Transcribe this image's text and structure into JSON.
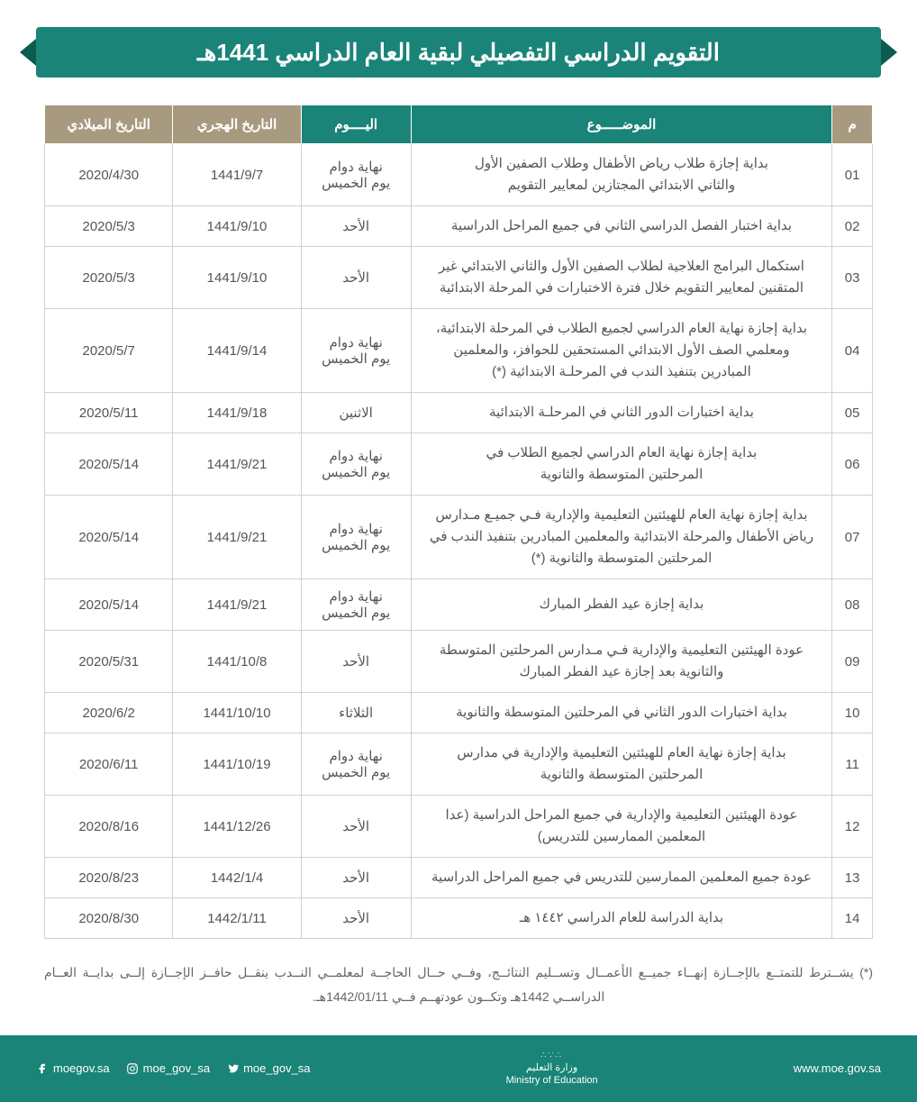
{
  "title": "التقويم الدراسي التفصيلي لبقية العام الدراسي  1441هـ",
  "colors": {
    "header_green": "#1a8478",
    "header_tan": "#a89a7f",
    "border": "#d0d0d0",
    "text": "#555555"
  },
  "columns": {
    "index": "م",
    "subject": "الموضـــــوع",
    "day": "اليــــوم",
    "hijri": "التاريخ الهجري",
    "gregorian": "التاريخ الميلادي"
  },
  "column_widths": {
    "index": 44,
    "subject": 460,
    "day": 120,
    "hijri": 140,
    "gregorian": 140
  },
  "rows": [
    {
      "n": "01",
      "subject": "بداية إجازة طلاب رياض الأطفال وطلاب الصفين الأول\nوالثاني الابتدائي المجتازين لمعايير التقويم",
      "day": "نهاية دوام\nيوم الخميس",
      "hijri": "1441/9/7",
      "greg": "2020/4/30"
    },
    {
      "n": "02",
      "subject": "بداية اختبار الفصل الدراسي الثاني في جميع المراحل الدراسية",
      "day": "الأحد",
      "hijri": "1441/9/10",
      "greg": "2020/5/3"
    },
    {
      "n": "03",
      "subject": "استكمال البرامج العلاجية لطلاب الصفين الأول والثاني الابتدائي غير\nالمتقنين لمعايير التقويم خلال فترة الاختبارات في المرحلة الابتدائية",
      "day": "الأحد",
      "hijri": "1441/9/10",
      "greg": "2020/5/3"
    },
    {
      "n": "04",
      "subject": "بداية إجازة نهاية العام الدراسي لجميع الطلاب في المرحلة الابتدائية،\nومعلمي الصف الأول الابتدائي المستحقين للحوافز، والمعلمين\nالمبادرين بتنفيذ الندب في المرحلـة الابتدائية (*)",
      "day": "نهاية دوام\nيوم الخميس",
      "hijri": "1441/9/14",
      "greg": "2020/5/7"
    },
    {
      "n": "05",
      "subject": "بداية اختبارات الدور الثاني في المرحلـة الابتدائية",
      "day": "الاثنين",
      "hijri": "1441/9/18",
      "greg": "2020/5/11"
    },
    {
      "n": "06",
      "subject": "بداية إجازة نهاية العام الدراسي لجميع الطلاب في\nالمرحلتين المتوسطة والثانوية",
      "day": "نهاية دوام\nيوم الخميس",
      "hijri": "1441/9/21",
      "greg": "2020/5/14"
    },
    {
      "n": "07",
      "subject": "بداية إجازة نهاية العام للهيئتين التعليمية والإدارية فـي جميـع مـدارس\nرياض الأطفال والمرحلة الابتدائية  والمعلمين المبادرين بتنفيذ الندب في\nالمرحلتين المتوسطة والثانوية  (*)",
      "day": "نهاية دوام\nيوم الخميس",
      "hijri": "1441/9/21",
      "greg": "2020/5/14"
    },
    {
      "n": "08",
      "subject": "بداية إجازة عيد الفطر المبارك",
      "day": "نهاية دوام\nيوم الخميس",
      "hijri": "1441/9/21",
      "greg": "2020/5/14"
    },
    {
      "n": "09",
      "subject": "عودة الهيئتين التعليمية والإدارية فـي مـدارس المرحلتين المتوسطة\nوالثانوية بعد إجازة عيد الفطر المبارك",
      "day": "الأحد",
      "hijri": "1441/10/8",
      "greg": "2020/5/31"
    },
    {
      "n": "10",
      "subject": "بداية اختبارات الدور الثاني في المرحلتين المتوسطة والثانوية",
      "day": "الثلاثاء",
      "hijri": "1441/10/10",
      "greg": "2020/6/2"
    },
    {
      "n": "11",
      "subject": "بداية إجازة نهاية العام للهيئتين التعليمية والإدارية في مدارس\nالمرحلتين المتوسطة والثانوية",
      "day": "نهاية دوام\nيوم الخميس",
      "hijri": "1441/10/19",
      "greg": "2020/6/11"
    },
    {
      "n": "12",
      "subject": "عودة الهيئتين التعليمية والإدارية في جميع المراحل الدراسية (عدا\nالمعلمين الممارسين للتدريس)",
      "day": "الأحد",
      "hijri": "1441/12/26",
      "greg": "2020/8/16"
    },
    {
      "n": "13",
      "subject": "عودة جميع المعلمين الممارسين للتدريس في جميع المراحل الدراسية",
      "day": "الأحد",
      "hijri": "1442/1/4",
      "greg": "2020/8/23"
    },
    {
      "n": "14",
      "subject": "بداية الدراسة للعام الدراسي ١٤٤٢ هـ",
      "day": "الأحد",
      "hijri": "1442/1/11",
      "greg": "2020/8/30"
    }
  ],
  "footnote": "(*) يشــترط للتمتــع بالإجــازة إنهــاء جميــع الأعمــال وتســليم النتائــج، وفــي حــال الحاجــة لمعلمــي النــدب ينقــل حافــز الإجــازة إلــى بدايــة العــام الدراســي 1442هـ  وتكــون عودتهــم فــي 1442/01/11هـ.",
  "footer": {
    "facebook": "moegov.sa",
    "instagram": "moe_gov_sa",
    "twitter": "moe_gov_sa",
    "ministry_ar": "وزارة التعليم",
    "ministry_en": "Ministry of Education",
    "website": "www.moe.gov.sa"
  }
}
